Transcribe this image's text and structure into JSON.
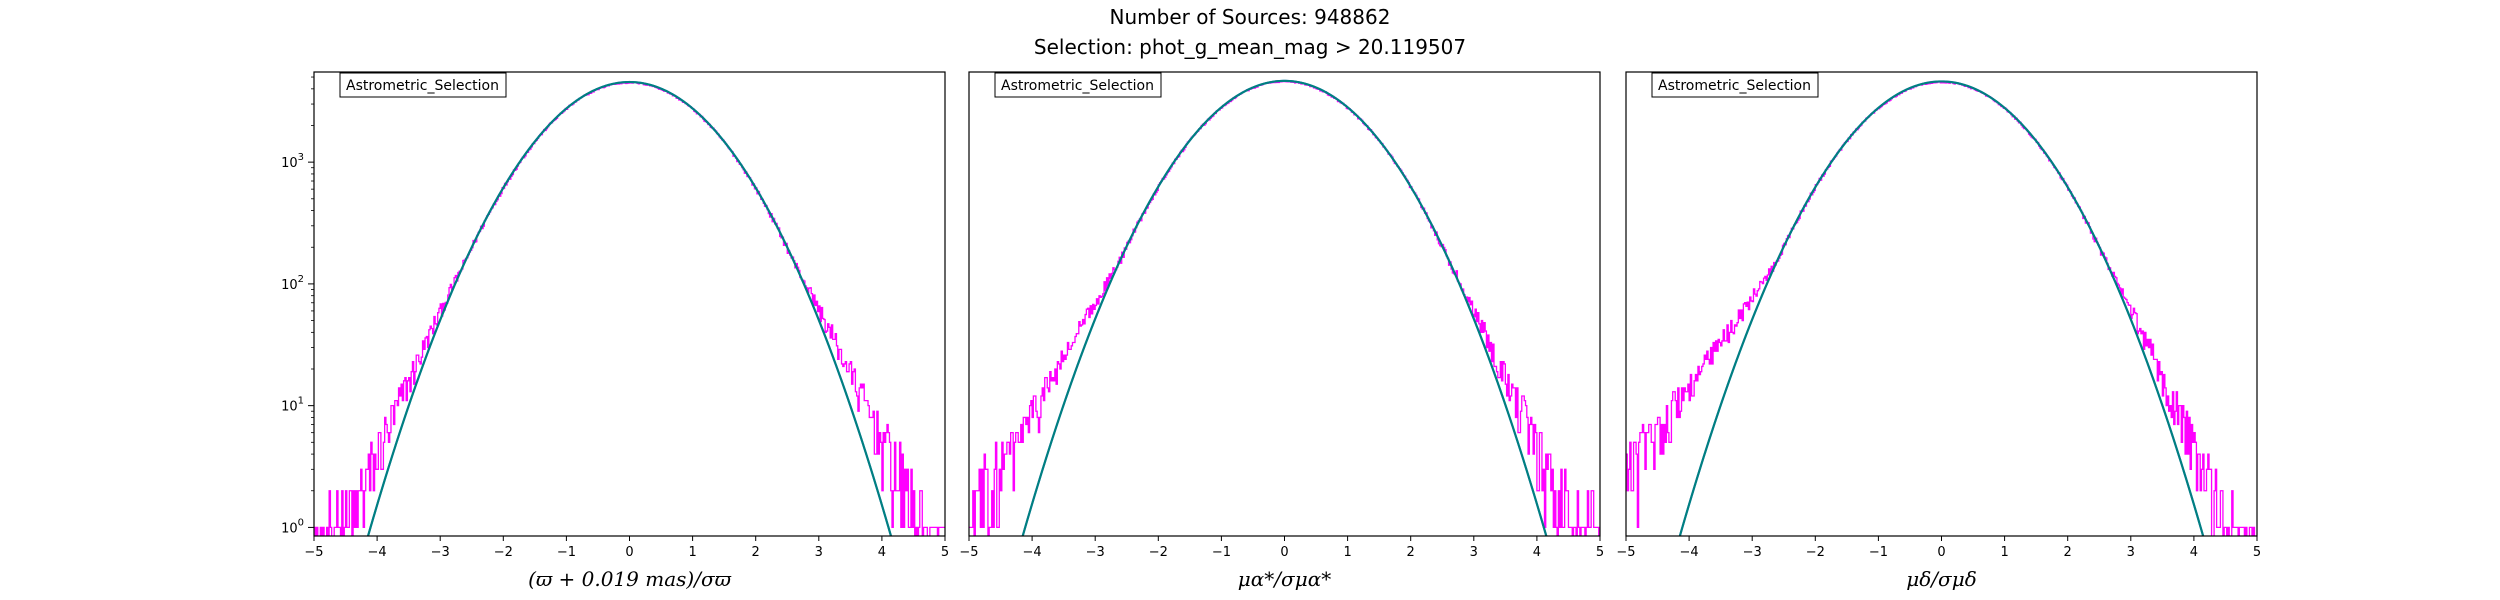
{
  "figure": {
    "title_line1": "Number of Sources: 948862",
    "title_line2": "Selection: phot_g_mean_mag > 20.119507"
  },
  "chart_data": [
    {
      "type": "line",
      "legend": "Astrometric_Selection",
      "xlabel": "(ϖ + 0.019 mas)/σϖ",
      "yscale": "log",
      "xlim": [
        -5,
        5
      ],
      "ylim": [
        0.85,
        5500
      ],
      "xticks": [
        "−5",
        "−4",
        "−3",
        "−2",
        "−1",
        "0",
        "1",
        "2",
        "3",
        "4",
        "5"
      ],
      "yticks": [
        {
          "value": 1,
          "base": "10",
          "exp": "0"
        },
        {
          "value": 10,
          "base": "10",
          "exp": "1"
        },
        {
          "value": 100,
          "base": "10",
          "exp": "2"
        },
        {
          "value": 1000,
          "base": "10",
          "exp": "3"
        }
      ],
      "series": [
        {
          "kind": "histogram",
          "color": "#ff00ff",
          "peak": 4500,
          "sigma": 1.0,
          "left_excess": 0.5,
          "right_excess": 0.7,
          "x_range": [
            -5,
            5
          ]
        },
        {
          "kind": "gaussian",
          "color": "#1f77b4",
          "amplitude": 4550,
          "sigma": 1.0
        },
        {
          "kind": "gaussian",
          "color": "#008080",
          "amplitude": 4550,
          "sigma": 1.0
        }
      ]
    },
    {
      "type": "line",
      "legend": "Astrometric_Selection",
      "xlabel": "μα*/σμα*",
      "yscale": "log",
      "xlim": [
        -5,
        5
      ],
      "ylim": [
        0.85,
        5500
      ],
      "xticks": [
        "−5",
        "−4",
        "−3",
        "−2",
        "−1",
        "0",
        "1",
        "2",
        "3",
        "4",
        "5"
      ],
      "yticks": [],
      "series": [
        {
          "kind": "histogram",
          "color": "#ff00ff",
          "peak": 4600,
          "sigma": 1.0,
          "left_excess": 1.0,
          "right_excess": 0.6,
          "x_range": [
            -5,
            5
          ]
        },
        {
          "kind": "gaussian",
          "color": "#1f77b4",
          "amplitude": 4650,
          "sigma": 1.0
        },
        {
          "kind": "gaussian",
          "color": "#008080",
          "amplitude": 4650,
          "sigma": 1.0
        }
      ]
    },
    {
      "type": "line",
      "legend": "Astrometric_Selection",
      "xlabel": "μδ/σμδ",
      "yscale": "log",
      "xlim": [
        -5,
        5
      ],
      "ylim": [
        0.85,
        5500
      ],
      "xticks": [
        "−5",
        "−4",
        "−3",
        "−2",
        "−1",
        "0",
        "1",
        "2",
        "3",
        "4",
        "5"
      ],
      "yticks": [],
      "series": [
        {
          "kind": "histogram",
          "color": "#ff00ff",
          "peak": 4550,
          "sigma": 1.0,
          "left_excess": 1.4,
          "right_excess": 0.6,
          "x_range": [
            -5,
            5
          ]
        },
        {
          "kind": "gaussian",
          "color": "#1f77b4",
          "amplitude": 4600,
          "sigma": 1.0
        },
        {
          "kind": "gaussian",
          "color": "#008080",
          "amplitude": 4600,
          "sigma": 1.0
        }
      ]
    }
  ]
}
